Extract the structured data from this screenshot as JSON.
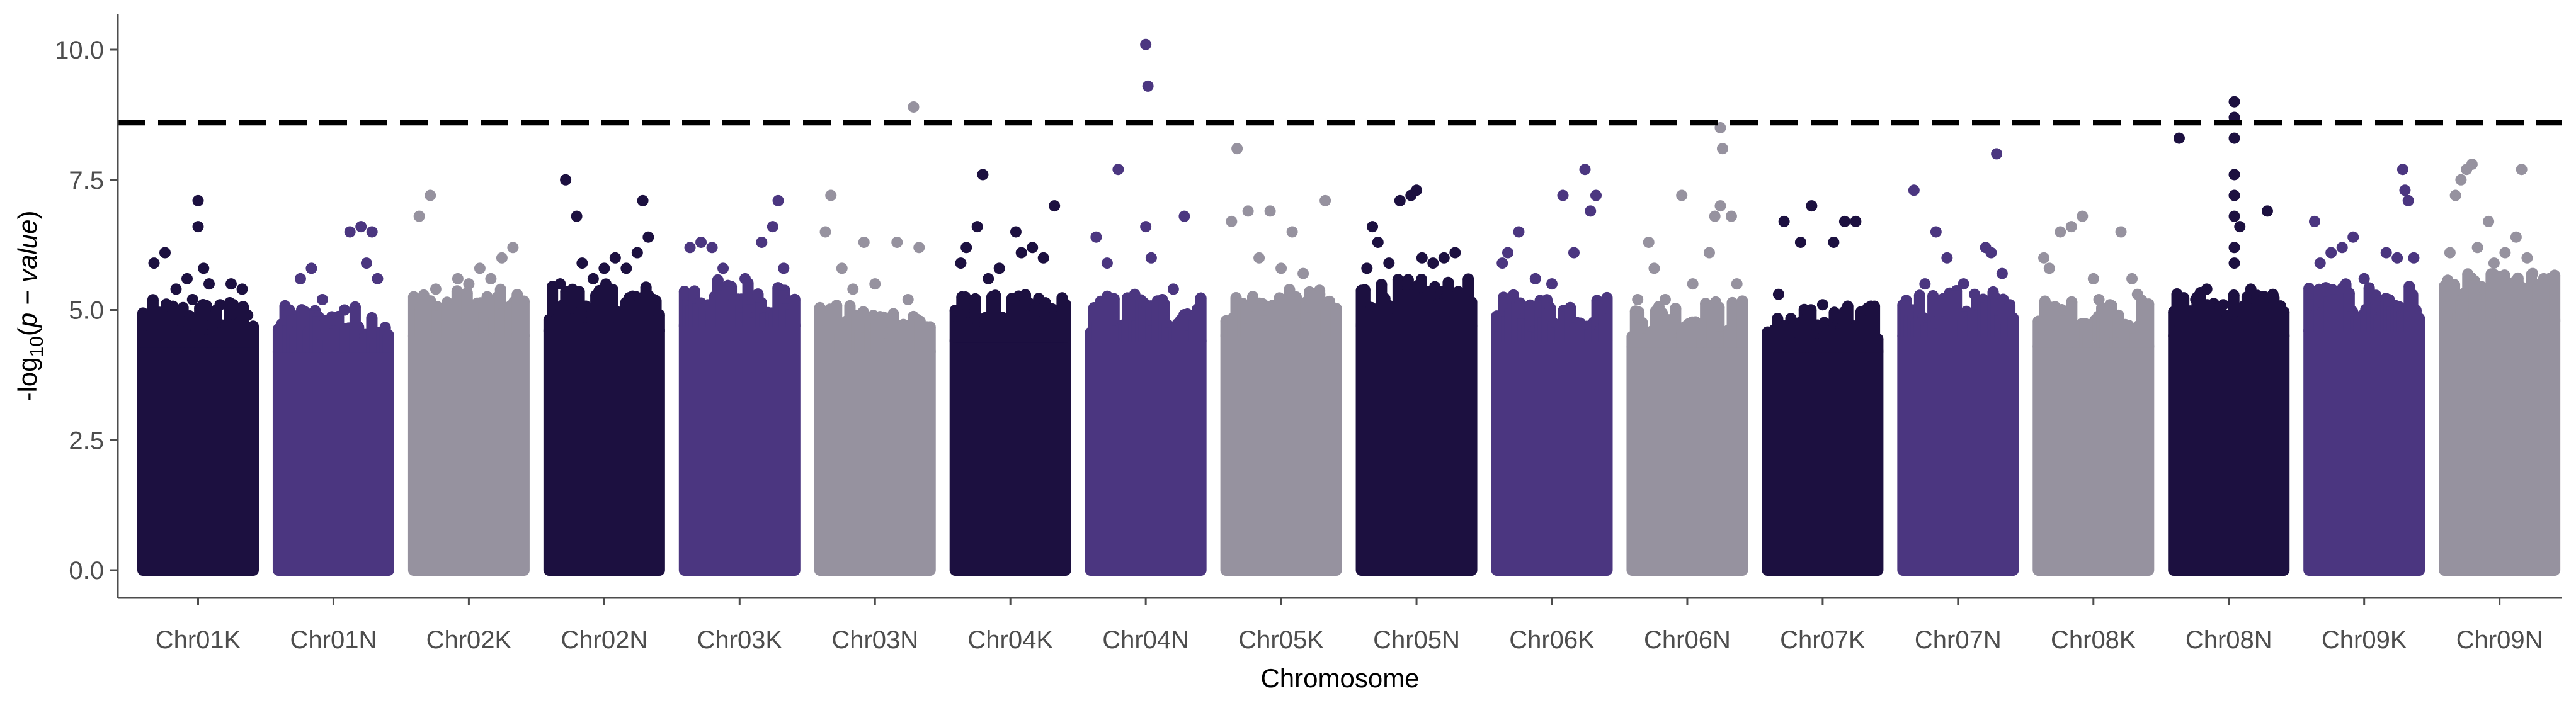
{
  "chart_data": {
    "type": "scatter",
    "subtype": "manhattan",
    "title": "",
    "xlabel": "Chromosome",
    "ylabel": "-log10(p - value)",
    "ylabel_parts": {
      "prefix": "-log",
      "sub": "10",
      "open": "(",
      "italic": "p − value",
      "close": ")"
    },
    "ylim": [
      0,
      10.6
    ],
    "yticks": [
      "0.0",
      "2.5",
      "5.0",
      "7.5",
      "10.0"
    ],
    "ytick_values": [
      0,
      2.5,
      5,
      7.5,
      10
    ],
    "threshold": 8.6,
    "grid": false,
    "legend": "none",
    "colors": [
      "#1c1040",
      "#4b3680",
      "#96929f"
    ],
    "categories": [
      "Chr01K",
      "Chr01N",
      "Chr02K",
      "Chr02N",
      "Chr03K",
      "Chr03N",
      "Chr04K",
      "Chr04N",
      "Chr05K",
      "Chr05N",
      "Chr06K",
      "Chr06N",
      "Chr07K",
      "Chr07N",
      "Chr08K",
      "Chr08N",
      "Chr09K",
      "Chr09N"
    ],
    "series": [
      {
        "chromosome": "Chr01K",
        "dense_max": 4.3,
        "outliers": [
          [
            0.05,
            4.7
          ],
          [
            0.1,
            5.9
          ],
          [
            0.2,
            6.1
          ],
          [
            0.3,
            5.4
          ],
          [
            0.4,
            5.6
          ],
          [
            0.45,
            5.2
          ],
          [
            0.5,
            7.1
          ],
          [
            0.5,
            6.6
          ],
          [
            0.55,
            5.8
          ],
          [
            0.6,
            5.5
          ],
          [
            0.7,
            5.1
          ],
          [
            0.8,
            5.5
          ],
          [
            0.9,
            5.4
          ],
          [
            0.95,
            4.9
          ]
        ]
      },
      {
        "chromosome": "Chr01N",
        "dense_max": 4.2,
        "outliers": [
          [
            0.1,
            5.0
          ],
          [
            0.2,
            5.6
          ],
          [
            0.3,
            5.8
          ],
          [
            0.4,
            5.2
          ],
          [
            0.5,
            4.8
          ],
          [
            0.6,
            5.0
          ],
          [
            0.65,
            6.5
          ],
          [
            0.75,
            6.6
          ],
          [
            0.8,
            5.9
          ],
          [
            0.85,
            6.5
          ],
          [
            0.9,
            5.6
          ]
        ]
      },
      {
        "chromosome": "Chr02K",
        "dense_max": 4.5,
        "outliers": [
          [
            0.05,
            6.8
          ],
          [
            0.15,
            7.2
          ],
          [
            0.2,
            5.4
          ],
          [
            0.4,
            5.6
          ],
          [
            0.5,
            5.5
          ],
          [
            0.6,
            5.8
          ],
          [
            0.7,
            5.6
          ],
          [
            0.8,
            6.0
          ],
          [
            0.9,
            6.2
          ],
          [
            0.95,
            5.0
          ]
        ]
      },
      {
        "chromosome": "Chr02N",
        "dense_max": 4.6,
        "outliers": [
          [
            0.1,
            5.5
          ],
          [
            0.15,
            7.5
          ],
          [
            0.25,
            6.8
          ],
          [
            0.3,
            5.9
          ],
          [
            0.4,
            5.6
          ],
          [
            0.5,
            5.8
          ],
          [
            0.6,
            6.0
          ],
          [
            0.7,
            5.8
          ],
          [
            0.8,
            6.1
          ],
          [
            0.85,
            7.1
          ],
          [
            0.9,
            6.4
          ],
          [
            0.95,
            5.2
          ]
        ]
      },
      {
        "chromosome": "Chr03K",
        "dense_max": 4.7,
        "outliers": [
          [
            0.05,
            6.2
          ],
          [
            0.15,
            6.3
          ],
          [
            0.25,
            6.2
          ],
          [
            0.35,
            5.8
          ],
          [
            0.45,
            5.2
          ],
          [
            0.55,
            5.6
          ],
          [
            0.7,
            6.3
          ],
          [
            0.8,
            6.6
          ],
          [
            0.85,
            7.1
          ],
          [
            0.9,
            5.8
          ]
        ]
      },
      {
        "chromosome": "Chr03N",
        "dense_max": 4.2,
        "outliers": [
          [
            0.05,
            6.5
          ],
          [
            0.1,
            7.2
          ],
          [
            0.2,
            5.8
          ],
          [
            0.3,
            5.4
          ],
          [
            0.4,
            6.3
          ],
          [
            0.5,
            5.5
          ],
          [
            0.6,
            4.8
          ],
          [
            0.7,
            6.3
          ],
          [
            0.8,
            5.2
          ],
          [
            0.85,
            8.9
          ],
          [
            0.9,
            6.2
          ]
        ]
      },
      {
        "chromosome": "Chr04K",
        "dense_max": 4.4,
        "outliers": [
          [
            0.05,
            5.9
          ],
          [
            0.1,
            6.2
          ],
          [
            0.2,
            6.6
          ],
          [
            0.25,
            7.6
          ],
          [
            0.3,
            5.6
          ],
          [
            0.4,
            5.8
          ],
          [
            0.55,
            6.5
          ],
          [
            0.6,
            6.1
          ],
          [
            0.7,
            6.2
          ],
          [
            0.8,
            6.0
          ],
          [
            0.9,
            7.0
          ]
        ]
      },
      {
        "chromosome": "Chr04N",
        "dense_max": 4.4,
        "outliers": [
          [
            0.05,
            6.4
          ],
          [
            0.15,
            5.9
          ],
          [
            0.25,
            7.7
          ],
          [
            0.4,
            5.3
          ],
          [
            0.5,
            10.1
          ],
          [
            0.52,
            9.3
          ],
          [
            0.5,
            6.6
          ],
          [
            0.55,
            6.0
          ],
          [
            0.65,
            5.2
          ],
          [
            0.75,
            5.4
          ],
          [
            0.85,
            6.8
          ]
        ]
      },
      {
        "chromosome": "Chr05K",
        "dense_max": 4.5,
        "outliers": [
          [
            0.05,
            6.7
          ],
          [
            0.1,
            8.1
          ],
          [
            0.2,
            6.9
          ],
          [
            0.3,
            6.0
          ],
          [
            0.4,
            6.9
          ],
          [
            0.5,
            5.8
          ],
          [
            0.6,
            6.5
          ],
          [
            0.7,
            5.7
          ],
          [
            0.85,
            5.3
          ],
          [
            0.9,
            7.1
          ]
        ]
      },
      {
        "chromosome": "Chr05N",
        "dense_max": 4.7,
        "outliers": [
          [
            0.05,
            5.8
          ],
          [
            0.1,
            6.6
          ],
          [
            0.15,
            6.3
          ],
          [
            0.25,
            5.9
          ],
          [
            0.35,
            7.1
          ],
          [
            0.45,
            7.2
          ],
          [
            0.5,
            7.3
          ],
          [
            0.55,
            6.0
          ],
          [
            0.65,
            5.9
          ],
          [
            0.75,
            6.0
          ],
          [
            0.85,
            6.1
          ]
        ]
      },
      {
        "chromosome": "Chr06K",
        "dense_max": 4.4,
        "outliers": [
          [
            0.05,
            5.9
          ],
          [
            0.1,
            6.1
          ],
          [
            0.2,
            6.5
          ],
          [
            0.35,
            5.6
          ],
          [
            0.5,
            5.5
          ],
          [
            0.6,
            7.2
          ],
          [
            0.7,
            6.1
          ],
          [
            0.8,
            7.7
          ],
          [
            0.85,
            6.9
          ],
          [
            0.9,
            7.2
          ],
          [
            0.95,
            5.0
          ]
        ]
      },
      {
        "chromosome": "Chr06N",
        "dense_max": 4.3,
        "outliers": [
          [
            0.05,
            5.2
          ],
          [
            0.15,
            6.3
          ],
          [
            0.2,
            5.8
          ],
          [
            0.3,
            5.2
          ],
          [
            0.45,
            7.2
          ],
          [
            0.55,
            5.5
          ],
          [
            0.7,
            6.1
          ],
          [
            0.75,
            6.8
          ],
          [
            0.8,
            8.5
          ],
          [
            0.82,
            8.1
          ],
          [
            0.8,
            7.0
          ],
          [
            0.9,
            6.8
          ],
          [
            0.95,
            5.5
          ]
        ]
      },
      {
        "chromosome": "Chr07K",
        "dense_max": 4.2,
        "outliers": [
          [
            0.1,
            5.3
          ],
          [
            0.15,
            6.7
          ],
          [
            0.3,
            6.3
          ],
          [
            0.4,
            7.0
          ],
          [
            0.5,
            5.1
          ],
          [
            0.6,
            6.3
          ],
          [
            0.7,
            6.7
          ],
          [
            0.8,
            6.7
          ],
          [
            0.9,
            5.0
          ]
        ]
      },
      {
        "chromosome": "Chr07N",
        "dense_max": 4.5,
        "outliers": [
          [
            0.05,
            5.0
          ],
          [
            0.1,
            7.3
          ],
          [
            0.2,
            5.5
          ],
          [
            0.3,
            6.5
          ],
          [
            0.4,
            6.0
          ],
          [
            0.55,
            5.5
          ],
          [
            0.65,
            5.3
          ],
          [
            0.75,
            6.2
          ],
          [
            0.8,
            6.1
          ],
          [
            0.85,
            8.0
          ],
          [
            0.9,
            5.7
          ]
        ]
      },
      {
        "chromosome": "Chr08K",
        "dense_max": 4.3,
        "outliers": [
          [
            0.05,
            6.0
          ],
          [
            0.1,
            5.8
          ],
          [
            0.2,
            6.5
          ],
          [
            0.3,
            6.6
          ],
          [
            0.4,
            6.8
          ],
          [
            0.5,
            5.6
          ],
          [
            0.55,
            5.2
          ],
          [
            0.65,
            5.1
          ],
          [
            0.75,
            6.5
          ],
          [
            0.85,
            5.6
          ],
          [
            0.9,
            5.3
          ]
        ]
      },
      {
        "chromosome": "Chr08N",
        "dense_max": 4.5,
        "outliers": [
          [
            0.05,
            8.3
          ],
          [
            0.1,
            5.0
          ],
          [
            0.2,
            5.2
          ],
          [
            0.3,
            5.4
          ],
          [
            0.45,
            5.1
          ],
          [
            0.55,
            9.0
          ],
          [
            0.55,
            8.7
          ],
          [
            0.55,
            8.3
          ],
          [
            0.55,
            7.6
          ],
          [
            0.55,
            7.2
          ],
          [
            0.55,
            6.8
          ],
          [
            0.6,
            6.6
          ],
          [
            0.55,
            6.2
          ],
          [
            0.55,
            5.9
          ],
          [
            0.7,
            5.4
          ],
          [
            0.85,
            6.9
          ],
          [
            0.9,
            5.3
          ]
        ]
      },
      {
        "chromosome": "Chr09K",
        "dense_max": 4.6,
        "outliers": [
          [
            0.05,
            6.7
          ],
          [
            0.1,
            5.9
          ],
          [
            0.2,
            6.1
          ],
          [
            0.3,
            6.2
          ],
          [
            0.4,
            6.4
          ],
          [
            0.5,
            5.6
          ],
          [
            0.6,
            5.2
          ],
          [
            0.7,
            6.1
          ],
          [
            0.8,
            6.0
          ],
          [
            0.85,
            7.7
          ],
          [
            0.87,
            7.3
          ],
          [
            0.9,
            7.1
          ],
          [
            0.95,
            6.0
          ]
        ]
      },
      {
        "chromosome": "Chr09N",
        "dense_max": 4.8,
        "outliers": [
          [
            0.05,
            6.1
          ],
          [
            0.1,
            7.2
          ],
          [
            0.15,
            7.5
          ],
          [
            0.2,
            7.7
          ],
          [
            0.25,
            7.8
          ],
          [
            0.3,
            6.2
          ],
          [
            0.4,
            6.7
          ],
          [
            0.45,
            5.9
          ],
          [
            0.55,
            6.1
          ],
          [
            0.65,
            6.4
          ],
          [
            0.7,
            7.7
          ],
          [
            0.75,
            6.0
          ],
          [
            0.8,
            5.7
          ],
          [
            0.9,
            5.6
          ],
          [
            0.95,
            5.6
          ]
        ]
      }
    ]
  }
}
